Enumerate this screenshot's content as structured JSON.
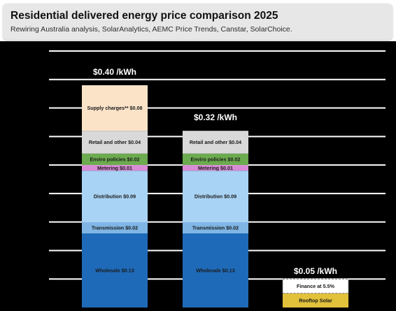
{
  "title": "Residential delivered energy price comparison 2025",
  "subtitle": "Rewiring Australia analysis, SolarAnalytics, AEMC Price Trends, Canstar, SolarChoice.",
  "colors": {
    "Wholesale": "#1f6ab8",
    "Transmission": "#7fb6e6",
    "Distribution": "#a9d3f4",
    "Metering": "#d98bd6",
    "Enviro policies": "#6cab4f",
    "Retail and other": "#d9d9d9",
    "Supply charges**": "#fbe3c8",
    "Rooftop Solar": "#e2c23a",
    "Finance at 5.5%": "#ffffff"
  },
  "chart_data": {
    "type": "bar",
    "stacked": true,
    "ylim": [
      0,
      0.45
    ],
    "ygrid_step": 0.05,
    "grid": true,
    "bars": [
      {
        "total": 0.4,
        "total_label": "$0.40 /kWh",
        "segments": [
          {
            "name": "Wholesale",
            "value": 0.13,
            "label": "Wholesale $0.13"
          },
          {
            "name": "Transmission",
            "value": 0.02,
            "label": "Transmission $0.02"
          },
          {
            "name": "Distribution",
            "value": 0.09,
            "label": "Distribution $0.09"
          },
          {
            "name": "Metering",
            "value": 0.01,
            "label": "Metering $0.01"
          },
          {
            "name": "Enviro policies",
            "value": 0.02,
            "label": "Enviro policies $0.02"
          },
          {
            "name": "Retail and other",
            "value": 0.04,
            "label": "Retail and other $0.04"
          },
          {
            "name": "Supply charges**",
            "value": 0.08,
            "label": "Supply charges** $0.08"
          }
        ]
      },
      {
        "total": 0.32,
        "total_label": "$0.32 /kWh",
        "segments": [
          {
            "name": "Wholesale",
            "value": 0.13,
            "label": "Wholesale $0.13"
          },
          {
            "name": "Transmission",
            "value": 0.02,
            "label": "Transmission $0.02"
          },
          {
            "name": "Distribution",
            "value": 0.09,
            "label": "Distribution $0.09"
          },
          {
            "name": "Metering",
            "value": 0.01,
            "label": "Metering $0.01"
          },
          {
            "name": "Enviro policies",
            "value": 0.02,
            "label": "Enviro policies $0.02"
          },
          {
            "name": "Retail and other",
            "value": 0.04,
            "label": "Retail and other $0.04"
          }
        ]
      },
      {
        "total": 0.05,
        "total_label": "$0.05 /kWh",
        "segments": [
          {
            "name": "Rooftop Solar",
            "value": 0.025,
            "label": "Rooftop Solar"
          },
          {
            "name": "Finance at 5.5%",
            "value": 0.025,
            "label": "Finance at 5.5%"
          }
        ]
      }
    ]
  }
}
